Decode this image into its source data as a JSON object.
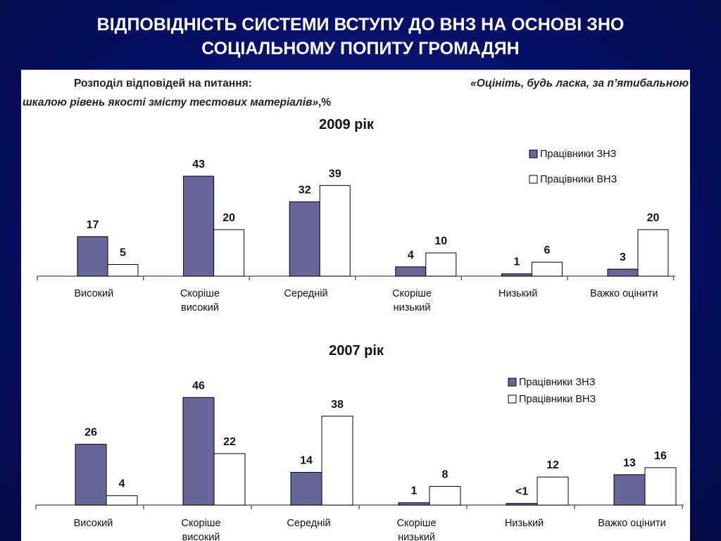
{
  "slide": {
    "title_line1": "ВІДПОВІДНІСТЬ СИСТЕМИ ВСТУПУ ДО ВНЗ НА ОСНОВІ ЗНО",
    "title_line2": "СОЦІАЛЬНОМУ ПОПИТУ ГРОМАДЯН"
  },
  "question": {
    "prefix": "Розподіл відповідей на питання:",
    "text_line1": "«Оцініть, будь ласка, за п’ятибальною",
    "text_line2": "шкалою рівень якості змісту тестових матеріалів»",
    "suffix": ",%"
  },
  "colors": {
    "series1": "#666699",
    "series2": "#ffffff",
    "background": "#061066",
    "panel": "#ffffff"
  },
  "chart_data": [
    {
      "type": "bar",
      "title": "2009 рік",
      "categories": [
        "Високий",
        "Скоріше високий",
        "Середній",
        "Скоріше низький",
        "Низький",
        "Важко оцінити"
      ],
      "category_lines": [
        [
          "Високий"
        ],
        [
          "Скоріше",
          "високий"
        ],
        [
          "Середній"
        ],
        [
          "Скоріше",
          "низький"
        ],
        [
          "Низький"
        ],
        [
          "Важко оцінити"
        ]
      ],
      "series": [
        {
          "name": "Працівники ЗНЗ",
          "values": [
            17,
            43,
            32,
            4,
            1,
            3
          ],
          "labels": [
            "17",
            "43",
            "32",
            "4",
            "1",
            "3"
          ]
        },
        {
          "name": "Працівники ВНЗ",
          "values": [
            5,
            20,
            39,
            10,
            6,
            20
          ],
          "labels": [
            "5",
            "20",
            "39",
            "10",
            "6",
            "20"
          ]
        }
      ],
      "ylim": [
        0,
        48
      ],
      "grid": false,
      "legend": "top-right"
    },
    {
      "type": "bar",
      "title": "2007 рік",
      "categories": [
        "Високий",
        "Скоріше високий",
        "Середній",
        "Скоріше низький",
        "Низький",
        "Важко оцінити"
      ],
      "category_lines": [
        [
          "Високий"
        ],
        [
          "Скоріше",
          "високий"
        ],
        [
          "Середній"
        ],
        [
          "Скоріше",
          "низький"
        ],
        [
          "Низький"
        ],
        [
          "Важко оцінити"
        ]
      ],
      "series": [
        {
          "name": "Працівники ЗНЗ",
          "values": [
            26,
            46,
            14,
            1,
            0.7,
            13
          ],
          "labels": [
            "26",
            "46",
            "14",
            "1",
            "<1",
            "13"
          ]
        },
        {
          "name": "Працівники ВНЗ",
          "values": [
            4,
            22,
            38,
            8,
            12,
            16
          ],
          "labels": [
            "4",
            "22",
            "38",
            "8",
            "12",
            "16"
          ]
        }
      ],
      "ylim": [
        0,
        48
      ],
      "grid": false,
      "legend": "top-right"
    }
  ]
}
